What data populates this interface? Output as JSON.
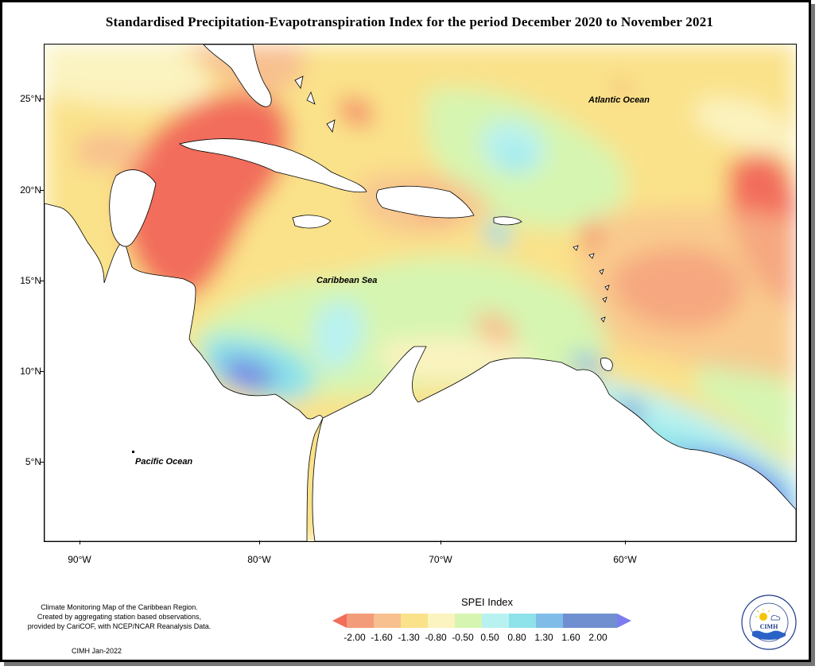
{
  "title": "Standardised Precipitation-Evapotranspiration Index for the period December 2020 to November 2021",
  "map": {
    "lat_ticks": [
      "25°N",
      "20°N",
      "15°N",
      "10°N",
      "5°N"
    ],
    "lon_ticks": [
      "90°W",
      "80°W",
      "70°W",
      "60°W"
    ],
    "labels": {
      "atlantic": "Atlantic Ocean",
      "caribbean": "Caribbean Sea",
      "pacific": "Pacific Ocean"
    }
  },
  "legend": {
    "title": "SPEI Index",
    "values": [
      "-2.00",
      "-1.60",
      "-1.30",
      "-0.80",
      "-0.50",
      "0.50",
      "0.80",
      "1.30",
      "1.60",
      "2.00"
    ],
    "colors": [
      "#f26d5b",
      "#f39c7a",
      "#f8c08f",
      "#fae28a",
      "#fbf3c0",
      "#d6f5b0",
      "#b8f2f0",
      "#8ee3ea",
      "#7fbde8",
      "#6f8fd0",
      "#7c7cf0"
    ]
  },
  "credits": {
    "line1": "Climate Monitoring Map of the Caribbean Region.",
    "line2": "Created by aggregating station based observations,",
    "line3": "provided by CariCOF, with NCEP/NCAR Reanalysis Data.",
    "date": "CIMH Jan-2022"
  },
  "logo": {
    "text": "CIMH",
    "ring_top": "Caribbean Institute for",
    "ring_bottom": "Meteorology and Hydrology"
  }
}
